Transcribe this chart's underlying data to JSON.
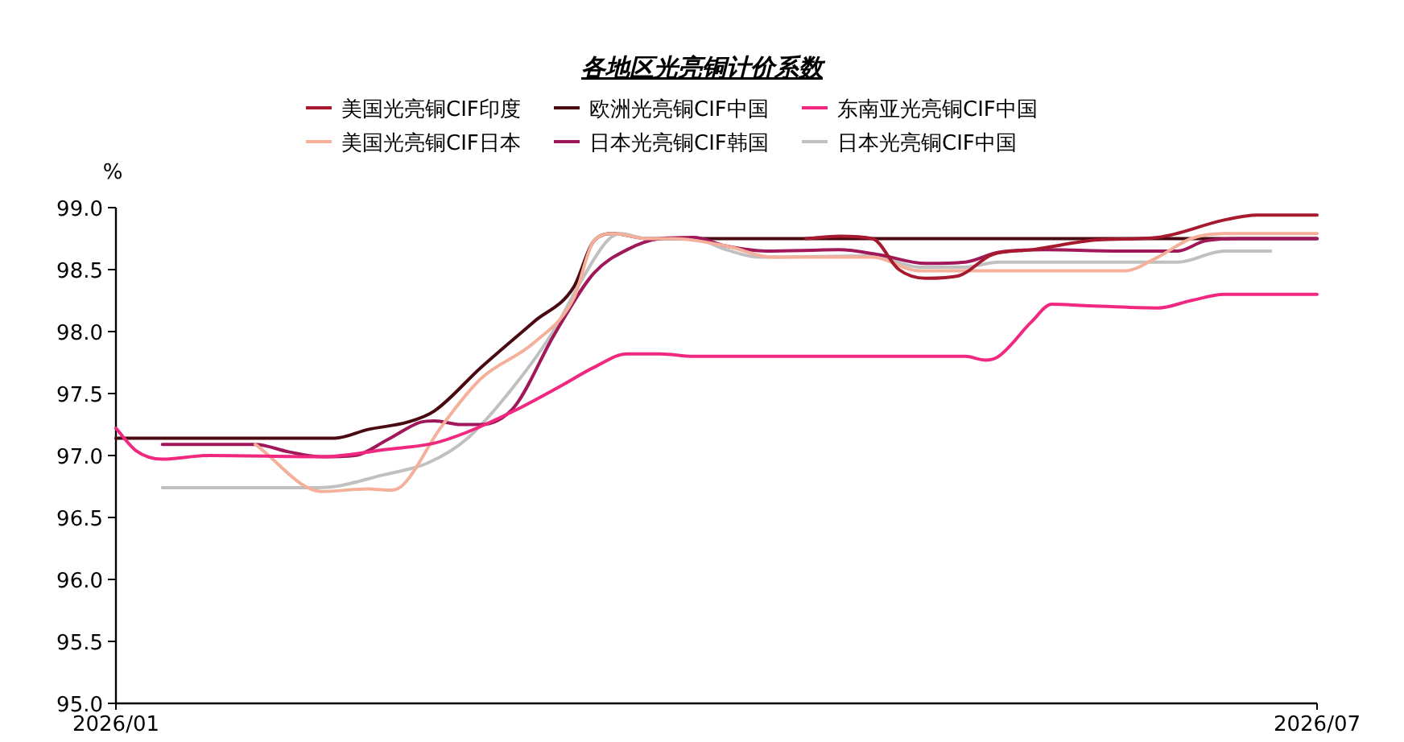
{
  "chart_data": {
    "type": "line",
    "title": "各地区光亮铜计价系数",
    "ylabel": "%",
    "legend": "top",
    "grid": false,
    "marker": "none",
    "line_style": "solid",
    "xlim": [
      "2026-01-01",
      "2026-07-01"
    ],
    "xticks": [
      {
        "value": "2026-01-01",
        "label": "2026/01"
      },
      {
        "value": "2026-07-01",
        "label": "2026/07"
      }
    ],
    "ylim": [
      95,
      99
    ],
    "yticks": [
      {
        "value": 95,
        "label": "95.0"
      },
      {
        "value": 95.5,
        "label": "95.5"
      },
      {
        "value": 96,
        "label": "96.0"
      },
      {
        "value": 96.5,
        "label": "96.5"
      },
      {
        "value": 97,
        "label": "97.0"
      },
      {
        "value": 97.5,
        "label": "97.5"
      },
      {
        "value": 98,
        "label": "98.0"
      },
      {
        "value": 98.5,
        "label": "98.5"
      },
      {
        "value": 99,
        "label": "99.0"
      }
    ],
    "series": [
      {
        "name": "美国光亮铜CIF印度",
        "color": "#a6192e",
        "x": [
          "2026-04-15",
          "2026-04-20",
          "2026-04-25",
          "2026-04-29",
          "2026-05-03",
          "2026-05-08",
          "2026-05-13",
          "2026-05-19",
          "2026-05-29",
          "2026-06-07",
          "2026-06-17",
          "2026-06-22",
          "2026-07-01"
        ],
        "values": [
          98.75,
          98.77,
          98.75,
          98.5,
          98.43,
          98.45,
          98.62,
          98.66,
          98.74,
          98.76,
          98.9,
          98.94,
          98.94
        ]
      },
      {
        "name": "欧洲光亮铜CIF中国",
        "color": "#4a0a12",
        "x": [
          "2026-01-01",
          "2026-02-03",
          "2026-02-08",
          "2026-02-14",
          "2026-02-18",
          "2026-02-25",
          "2026-03-05",
          "2026-03-11",
          "2026-03-14",
          "2026-03-17",
          "2026-03-22",
          "2026-03-26",
          "2026-07-01"
        ],
        "values": [
          97.14,
          97.14,
          97.21,
          97.27,
          97.36,
          97.71,
          98.08,
          98.36,
          98.73,
          98.79,
          98.75,
          98.75,
          98.75
        ]
      },
      {
        "name": "东南亚光亮铜CIF中国",
        "color": "#f0287f",
        "x": [
          "2026-01-01",
          "2026-01-04",
          "2026-01-08",
          "2026-01-15",
          "2026-02-01",
          "2026-02-11",
          "2026-02-18",
          "2026-02-23",
          "2026-03-02",
          "2026-03-09",
          "2026-03-14",
          "2026-03-19",
          "2026-03-24",
          "2026-03-29",
          "2026-05-09",
          "2026-05-12",
          "2026-05-14",
          "2026-05-19",
          "2026-05-22",
          "2026-05-27",
          "2026-06-07",
          "2026-06-12",
          "2026-06-17",
          "2026-06-24",
          "2026-07-01"
        ],
        "values": [
          97.22,
          97.04,
          96.97,
          97.0,
          96.99,
          97.05,
          97.1,
          97.19,
          97.36,
          97.56,
          97.71,
          97.82,
          97.82,
          97.8,
          97.8,
          97.77,
          97.8,
          98.08,
          98.22,
          98.21,
          98.19,
          98.25,
          98.3,
          98.3,
          98.3
        ]
      },
      {
        "name": "美国光亮铜CIF日本",
        "color": "#f4b09a",
        "x": [
          "2026-01-22",
          "2026-02-01",
          "2026-02-08",
          "2026-02-11",
          "2026-02-13",
          "2026-02-19",
          "2026-02-25",
          "2026-03-05",
          "2026-03-11",
          "2026-03-14",
          "2026-03-17",
          "2026-03-22",
          "2026-03-26",
          "2026-04-03",
          "2026-04-10",
          "2026-04-25",
          "2026-05-02",
          "2026-06-02",
          "2026-06-07",
          "2026-06-12",
          "2026-06-17",
          "2026-07-01"
        ],
        "values": [
          97.09,
          96.71,
          96.73,
          96.72,
          96.75,
          97.23,
          97.62,
          97.91,
          98.27,
          98.73,
          98.79,
          98.75,
          98.75,
          98.69,
          98.6,
          98.6,
          98.49,
          98.49,
          98.6,
          98.75,
          98.79,
          98.79
        ]
      },
      {
        "name": "日本光亮铜CIF韩国",
        "color": "#a0185a",
        "x": [
          "2026-01-08",
          "2026-01-17",
          "2026-01-22",
          "2026-01-27",
          "2026-02-01",
          "2026-02-06",
          "2026-02-11",
          "2026-02-16",
          "2026-02-18",
          "2026-02-22",
          "2026-02-25",
          "2026-03-02",
          "2026-03-08",
          "2026-03-14",
          "2026-03-19",
          "2026-03-24",
          "2026-03-29",
          "2026-04-03",
          "2026-04-09",
          "2026-04-20",
          "2026-04-26",
          "2026-05-03",
          "2026-05-09",
          "2026-05-14",
          "2026-05-21",
          "2026-06-02",
          "2026-06-10",
          "2026-06-14",
          "2026-06-19",
          "2026-07-01"
        ],
        "values": [
          97.09,
          97.09,
          97.09,
          97.03,
          96.99,
          97.0,
          97.13,
          97.27,
          97.28,
          97.25,
          97.25,
          97.39,
          97.97,
          98.47,
          98.66,
          98.75,
          98.76,
          98.69,
          98.65,
          98.66,
          98.62,
          98.55,
          98.56,
          98.64,
          98.66,
          98.65,
          98.65,
          98.73,
          98.75,
          98.75
        ]
      },
      {
        "name": "日本光亮铜CIF中国",
        "color": "#c0c0c0",
        "x": [
          "2026-01-08",
          "2026-01-30",
          "2026-02-03",
          "2026-02-10",
          "2026-02-17",
          "2026-02-23",
          "2026-03-02",
          "2026-03-08",
          "2026-03-12",
          "2026-03-16",
          "2026-03-18",
          "2026-03-22",
          "2026-03-29",
          "2026-04-03",
          "2026-04-08",
          "2026-04-25",
          "2026-05-02",
          "2026-05-09",
          "2026-05-14",
          "2026-06-02",
          "2026-06-10",
          "2026-06-17",
          "2026-06-24"
        ],
        "values": [
          96.74,
          96.74,
          96.75,
          96.84,
          96.94,
          97.14,
          97.56,
          98.01,
          98.4,
          98.73,
          98.79,
          98.75,
          98.75,
          98.66,
          98.6,
          98.61,
          98.52,
          98.52,
          98.56,
          98.56,
          98.56,
          98.65,
          98.65
        ]
      }
    ]
  }
}
